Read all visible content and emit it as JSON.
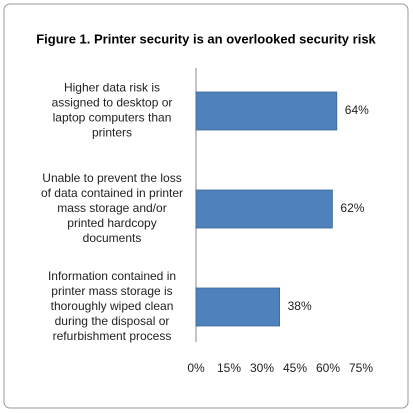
{
  "chart_data": {
    "type": "bar",
    "orientation": "horizontal",
    "title": "Figure 1. Printer security is an overlooked security risk",
    "categories": [
      "Higher data risk is\nassigned to desktop or\nlaptop computers than\nprinters",
      "Unable to prevent the loss\nof data contained in printer\nmass storage and/or\nprinted hardcopy\ndocuments",
      "Information contained in\nprinter mass storage is\nthoroughly wiped clean\nduring the disposal or\nrefurbishment process"
    ],
    "values": [
      64,
      62,
      38
    ],
    "value_labels": [
      "64%",
      "62%",
      "38%"
    ],
    "color": "#4f81bd",
    "xlim": [
      0,
      75
    ],
    "xticks": [
      {
        "value": 0,
        "label": "0%"
      },
      {
        "value": 15,
        "label": "15%"
      },
      {
        "value": 30,
        "label": "30%"
      },
      {
        "value": 45,
        "label": "45%"
      },
      {
        "value": 60,
        "label": "60%"
      },
      {
        "value": 75,
        "label": "75%"
      }
    ]
  }
}
